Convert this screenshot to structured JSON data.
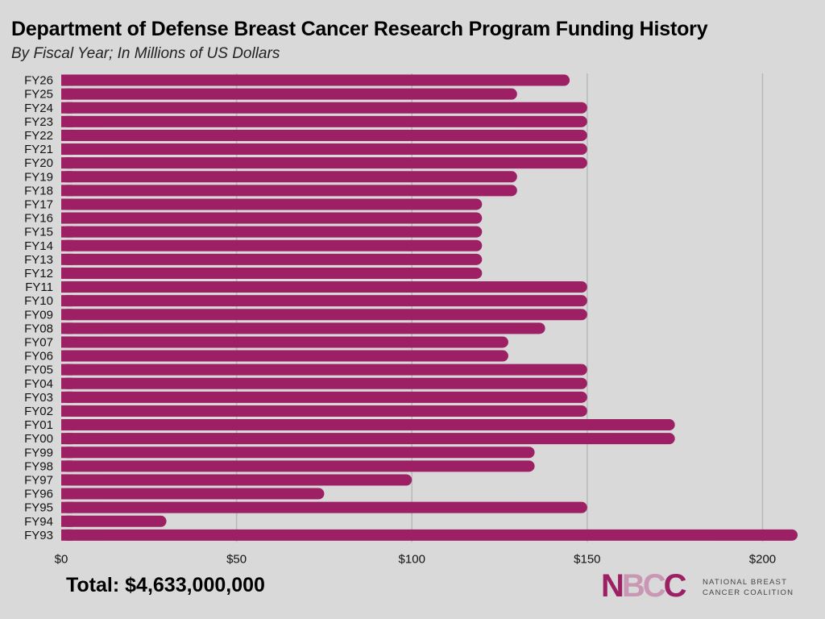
{
  "chart_data": {
    "type": "bar",
    "orientation": "horizontal",
    "title": "Department of Defense Breast Cancer Research Program Funding History",
    "subtitle": "By Fiscal Year; In Millions of US Dollars",
    "categories": [
      "FY26",
      "FY25",
      "FY24",
      "FY23",
      "FY22",
      "FY21",
      "FY20",
      "FY19",
      "FY18",
      "FY17",
      "FY16",
      "FY15",
      "FY14",
      "FY13",
      "FY12",
      "FY11",
      "FY10",
      "FY09",
      "FY08",
      "FY07",
      "FY06",
      "FY05",
      "FY04",
      "FY03",
      "FY02",
      "FY01",
      "FY00",
      "FY99",
      "FY98",
      "FY97",
      "FY96",
      "FY95",
      "FY94",
      "FY93"
    ],
    "values": [
      145,
      130,
      150,
      150,
      150,
      150,
      150,
      130,
      130,
      120,
      120,
      120,
      120,
      120,
      120,
      150,
      150,
      150,
      138,
      127.5,
      127.5,
      150,
      150,
      150,
      150,
      175,
      175,
      135,
      135,
      100,
      75,
      150,
      30,
      210
    ],
    "xlim": [
      0,
      210
    ],
    "xticks": [
      0,
      50,
      100,
      150,
      200
    ],
    "xtick_labels": [
      "$0",
      "$50",
      "$100",
      "$150",
      "$200"
    ],
    "xlabel": "",
    "ylabel": "",
    "grid": "vertical",
    "bar_color": "#9c2063",
    "grid_color": "#b8b8b8"
  },
  "footer": {
    "total": "Total: $4,633,000,000"
  },
  "logo": {
    "mark_n": "N",
    "mark_b": "B",
    "mark_c1": "C",
    "mark_c2": "C",
    "line1": "NATIONAL BREAST",
    "line2": "CANCER COALITION"
  }
}
